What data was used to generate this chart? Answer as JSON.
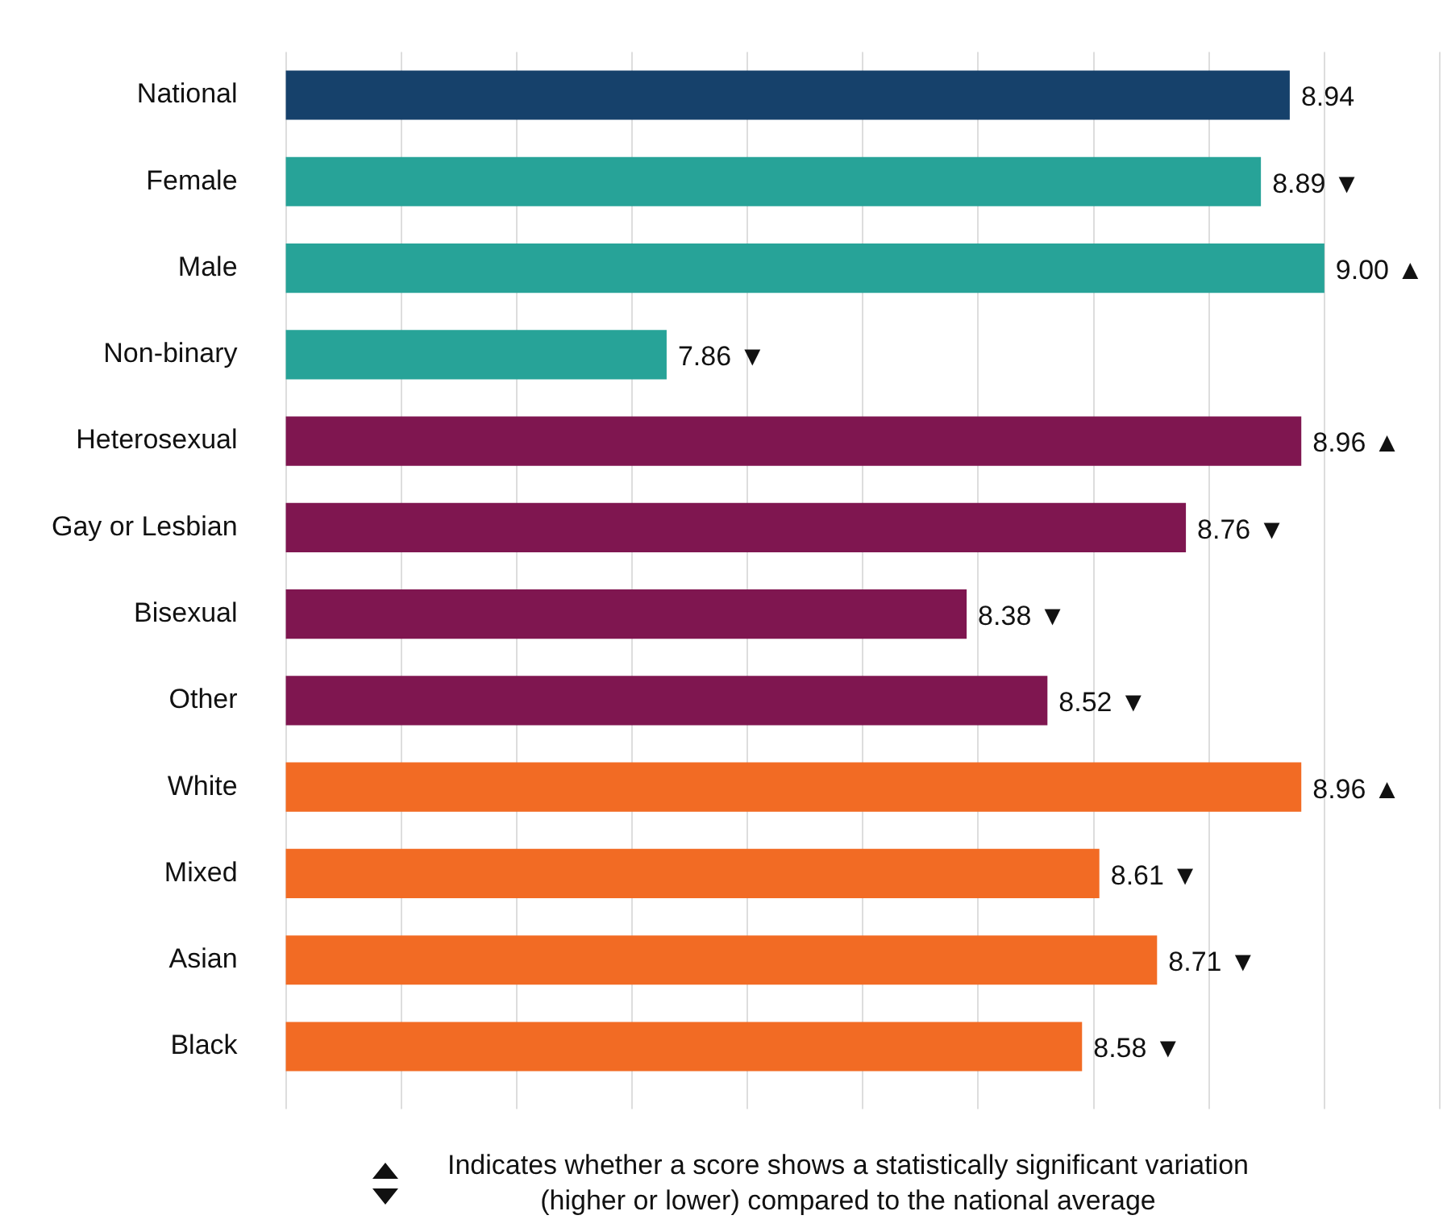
{
  "chart_data": {
    "type": "bar",
    "orientation": "horizontal",
    "categories": [
      "National",
      "Female",
      "Male",
      "Non-binary",
      "Heterosexual",
      "Gay or Lesbian",
      "Bisexual",
      "Other",
      "White",
      "Mixed",
      "Asian",
      "Black"
    ],
    "values": [
      8.94,
      8.89,
      9.0,
      7.86,
      8.96,
      8.76,
      8.38,
      8.52,
      8.96,
      8.61,
      8.71,
      8.58
    ],
    "colors": [
      "#16416b",
      "#27a398",
      "#27a398",
      "#27a398",
      "#7f1650",
      "#7f1650",
      "#7f1650",
      "#7f1650",
      "#f26b24",
      "#f26b24",
      "#f26b24",
      "#f26b24"
    ],
    "value_labels": [
      "8.94",
      "8.89 ▼",
      "9.00 ▲",
      "7.86 ▼",
      "8.96 ▲",
      "8.76 ▼",
      "8.38 ▼",
      "8.52 ▼",
      "8.96 ▲",
      "8.61 ▼",
      "8.71 ▼",
      "8.58 ▼"
    ],
    "xlim": [
      7.2,
      9.2
    ],
    "xticks": [
      {
        "value": 7.2,
        "label": null
      },
      {
        "value": 7.4,
        "label": null
      },
      {
        "value": 7.6,
        "label": null
      },
      {
        "value": 7.8,
        "label": null
      },
      {
        "value": 8.0,
        "label": null
      },
      {
        "value": 8.2,
        "label": null
      },
      {
        "value": 8.4,
        "label": null
      },
      {
        "value": 8.6,
        "label": null
      },
      {
        "value": 8.8,
        "label": null
      },
      {
        "value": 9.0,
        "label": null
      },
      {
        "value": 9.2,
        "label": null
      }
    ],
    "grid": "x",
    "legend": false,
    "tick_labels": "y",
    "annotations": [
      "Indicates whether a score shows a statistically significant variation (higher or lower) compared to the national average"
    ]
  }
}
